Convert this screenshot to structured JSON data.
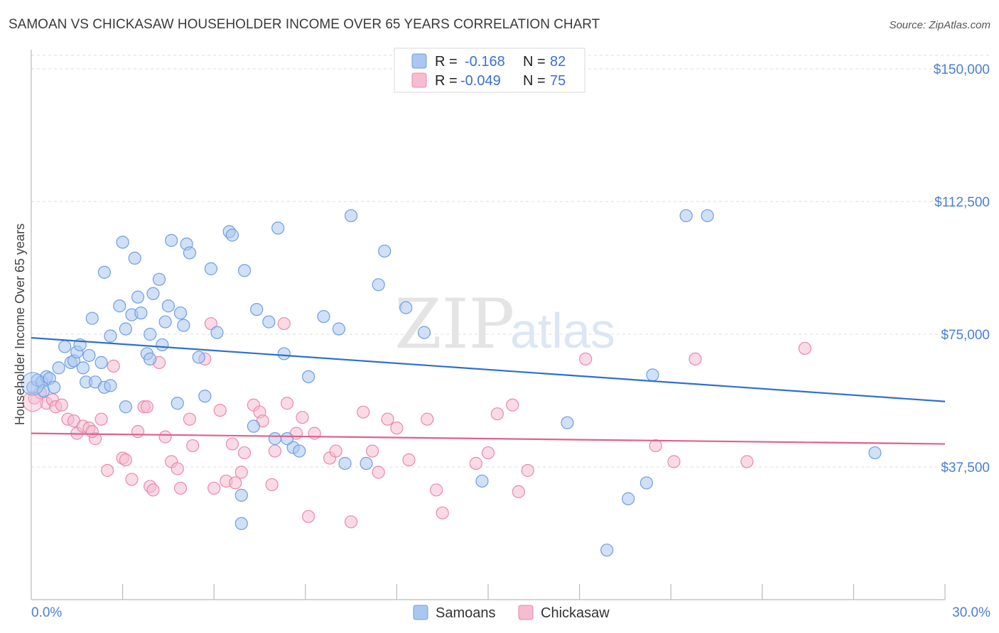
{
  "title": "SAMOAN VS CHICKASAW HOUSEHOLDER INCOME OVER 65 YEARS CORRELATION CHART",
  "source": "Source: ZipAtlas.com",
  "watermark": {
    "zip": "ZIP",
    "atlas": "atlas"
  },
  "colors": {
    "samoan_fill": "#a9c7f0",
    "samoan_stroke": "#6f9ee0",
    "samoan_line": "#2e6fd0",
    "chickasaw_fill": "#f6bcd0",
    "chickasaw_stroke": "#e88aaa",
    "chickasaw_line": "#e0608f",
    "grid": "#dddddd",
    "tick_text": "#4a7fd4"
  },
  "legend": {
    "items": [
      {
        "r_label": "R =",
        "r_value": "-0.168",
        "n_label": "N =",
        "n_value": "82"
      },
      {
        "r_label": "R =",
        "r_value": "-0.049",
        "n_label": "N =",
        "n_value": "75"
      }
    ]
  },
  "bottom_legend": [
    "Samoans",
    "Chickasaw"
  ],
  "chart_data": {
    "type": "scatter",
    "xlabel": "",
    "ylabel": "Householder Income Over 65 years",
    "xlim": [
      0,
      30
    ],
    "ylim": [
      0,
      155000
    ],
    "x_tick_labels": {
      "min": "0.0%",
      "max": "30.0%"
    },
    "y_ticks": [
      {
        "value": 150000,
        "label": "$150,000"
      },
      {
        "value": 112500,
        "label": "$112,500"
      },
      {
        "value": 75000,
        "label": "$75,000"
      },
      {
        "value": 37500,
        "label": "$37,500"
      }
    ],
    "grid": "horizontal dashed",
    "legend_position": "top-center",
    "series": [
      {
        "name": "Samoans",
        "trend": {
          "x0": 0,
          "y0": 74000,
          "x1": 30,
          "y1": 56000
        },
        "points": [
          [
            0.05,
            60000
          ],
          [
            0.2,
            62000
          ],
          [
            0.35,
            61500
          ],
          [
            0.4,
            59000
          ],
          [
            0.5,
            63000
          ],
          [
            0.6,
            62500
          ],
          [
            0.75,
            60000
          ],
          [
            0.9,
            65500
          ],
          [
            1.1,
            71500
          ],
          [
            1.3,
            67000
          ],
          [
            1.4,
            67500
          ],
          [
            1.5,
            70000
          ],
          [
            1.6,
            72000
          ],
          [
            1.7,
            65500
          ],
          [
            1.8,
            61500
          ],
          [
            1.9,
            69000
          ],
          [
            2.0,
            79500
          ],
          [
            2.1,
            61500
          ],
          [
            2.3,
            67000
          ],
          [
            2.4,
            60000
          ],
          [
            2.4,
            92500
          ],
          [
            2.6,
            60500
          ],
          [
            2.6,
            74500
          ],
          [
            2.9,
            83000
          ],
          [
            3.0,
            101000
          ],
          [
            3.1,
            76500
          ],
          [
            3.1,
            54500
          ],
          [
            3.3,
            80500
          ],
          [
            3.4,
            96500
          ],
          [
            3.5,
            85500
          ],
          [
            3.6,
            81000
          ],
          [
            3.8,
            69500
          ],
          [
            3.9,
            68000
          ],
          [
            3.9,
            75000
          ],
          [
            4.0,
            86500
          ],
          [
            4.2,
            90500
          ],
          [
            4.3,
            72000
          ],
          [
            4.4,
            78500
          ],
          [
            4.5,
            83000
          ],
          [
            4.6,
            101500
          ],
          [
            4.8,
            55500
          ],
          [
            4.9,
            81000
          ],
          [
            5.0,
            77500
          ],
          [
            5.1,
            100500
          ],
          [
            5.2,
            98000
          ],
          [
            5.5,
            68500
          ],
          [
            5.7,
            57500
          ],
          [
            5.9,
            93500
          ],
          [
            6.1,
            75500
          ],
          [
            6.5,
            104000
          ],
          [
            6.6,
            103000
          ],
          [
            6.9,
            29500
          ],
          [
            7.0,
            93000
          ],
          [
            7.4,
            82000
          ],
          [
            7.8,
            78500
          ],
          [
            8.0,
            45500
          ],
          [
            8.1,
            105000
          ],
          [
            8.3,
            69500
          ],
          [
            8.6,
            43000
          ],
          [
            8.8,
            42000
          ],
          [
            9.1,
            63000
          ],
          [
            10.1,
            76500
          ],
          [
            10.5,
            108500
          ],
          [
            11.4,
            89000
          ],
          [
            11.6,
            98500
          ],
          [
            12.3,
            82500
          ],
          [
            12.9,
            75500
          ],
          [
            14.8,
            33500
          ],
          [
            17.6,
            50000
          ],
          [
            18.9,
            14000
          ],
          [
            19.6,
            28500
          ],
          [
            20.2,
            33000
          ],
          [
            20.4,
            63500
          ],
          [
            21.5,
            108500
          ],
          [
            22.2,
            108500
          ],
          [
            27.7,
            41500
          ],
          [
            6.9,
            21500
          ],
          [
            10.3,
            38500
          ],
          [
            11.0,
            38500
          ],
          [
            8.4,
            45500
          ],
          [
            7.3,
            49000
          ],
          [
            9.6,
            80000
          ]
        ]
      },
      {
        "name": "Chickasaw",
        "trend": {
          "x0": 0,
          "y0": 47000,
          "x1": 30,
          "y1": 44000
        },
        "points": [
          [
            0.1,
            57000
          ],
          [
            0.3,
            58500
          ],
          [
            0.5,
            55500
          ],
          [
            0.7,
            56500
          ],
          [
            0.8,
            54500
          ],
          [
            1.0,
            55000
          ],
          [
            1.2,
            51000
          ],
          [
            1.4,
            50500
          ],
          [
            1.5,
            47000
          ],
          [
            1.7,
            49000
          ],
          [
            1.9,
            48500
          ],
          [
            2.1,
            45500
          ],
          [
            2.3,
            51000
          ],
          [
            2.5,
            36500
          ],
          [
            2.7,
            66000
          ],
          [
            3.0,
            40000
          ],
          [
            3.1,
            39500
          ],
          [
            3.3,
            34000
          ],
          [
            3.5,
            47500
          ],
          [
            3.7,
            54500
          ],
          [
            3.9,
            32000
          ],
          [
            4.0,
            31000
          ],
          [
            4.2,
            67000
          ],
          [
            4.4,
            46000
          ],
          [
            4.6,
            39000
          ],
          [
            4.8,
            37000
          ],
          [
            4.9,
            31500
          ],
          [
            5.2,
            51000
          ],
          [
            5.3,
            43500
          ],
          [
            5.7,
            68000
          ],
          [
            5.9,
            78000
          ],
          [
            6.0,
            31500
          ],
          [
            6.2,
            53500
          ],
          [
            6.4,
            33500
          ],
          [
            6.6,
            44000
          ],
          [
            6.7,
            33000
          ],
          [
            6.9,
            36000
          ],
          [
            7.0,
            41500
          ],
          [
            7.3,
            55000
          ],
          [
            7.5,
            53000
          ],
          [
            7.6,
            50500
          ],
          [
            7.9,
            32500
          ],
          [
            8.0,
            42000
          ],
          [
            8.3,
            78000
          ],
          [
            8.4,
            55500
          ],
          [
            8.7,
            47000
          ],
          [
            8.9,
            51500
          ],
          [
            9.1,
            23500
          ],
          [
            9.3,
            47000
          ],
          [
            9.8,
            40000
          ],
          [
            10.0,
            42000
          ],
          [
            10.5,
            22000
          ],
          [
            10.9,
            53000
          ],
          [
            11.2,
            42000
          ],
          [
            11.4,
            36000
          ],
          [
            11.7,
            51000
          ],
          [
            12.0,
            48500
          ],
          [
            12.4,
            39500
          ],
          [
            13.0,
            51000
          ],
          [
            13.3,
            31000
          ],
          [
            13.5,
            24500
          ],
          [
            14.6,
            38500
          ],
          [
            15.0,
            41500
          ],
          [
            15.3,
            52500
          ],
          [
            15.8,
            55000
          ],
          [
            16.0,
            30500
          ],
          [
            16.3,
            36500
          ],
          [
            18.2,
            68000
          ],
          [
            20.5,
            43500
          ],
          [
            21.1,
            39000
          ],
          [
            21.8,
            68000
          ],
          [
            23.5,
            39000
          ],
          [
            25.4,
            71000
          ],
          [
            2.0,
            47500
          ],
          [
            3.8,
            54500
          ]
        ]
      }
    ]
  }
}
